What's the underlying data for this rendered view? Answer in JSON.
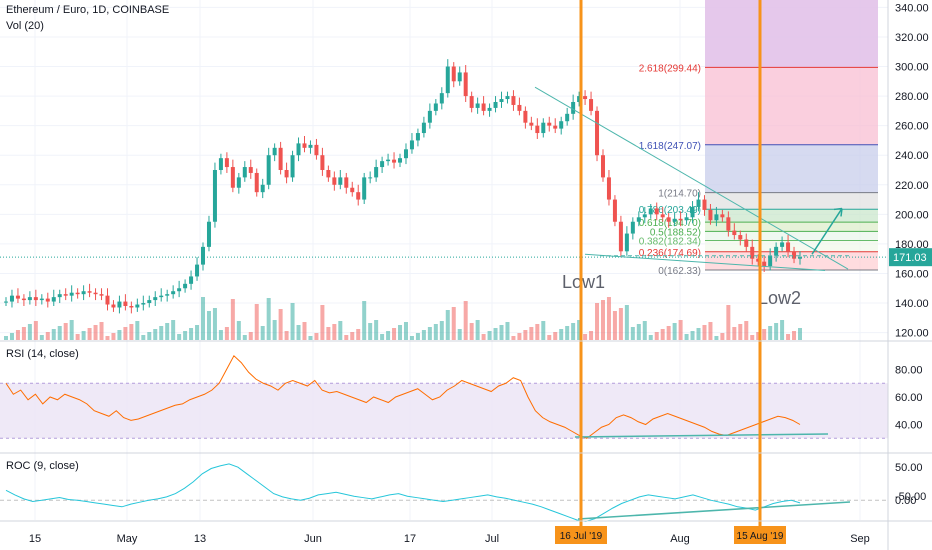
{
  "header": {
    "title": "Ethereum / Euro, 1D, COINBASE",
    "volume_label": "Vol (20)"
  },
  "price_axis": {
    "ticks": [
      "340.00",
      "320.00",
      "300.00",
      "280.00",
      "260.00",
      "240.00",
      "220.00",
      "200.00",
      "180.00",
      "160.00",
      "140.00",
      "120.00"
    ]
  },
  "current_price": {
    "label": "171.03",
    "value": 171.03,
    "color": "#26a69a"
  },
  "time_axis": {
    "ticks": [
      "15",
      "May",
      "13",
      "Jun",
      "17",
      "Jul",
      "Aug",
      "Sep"
    ],
    "highlight": [
      "16 Jul '19",
      "15 Aug '19"
    ]
  },
  "fib": [
    {
      "label": "2.618(299.44)",
      "value": 299.44,
      "color": "#e53935"
    },
    {
      "label": "1.618(247.07)",
      "value": 247.07,
      "color": "#3f51b5"
    },
    {
      "label": "1(214.70)",
      "value": 214.7,
      "color": "#787b86"
    },
    {
      "label": "0.786(203.49)",
      "value": 203.49,
      "color": "#26a69a"
    },
    {
      "label": "0.618(194.70)",
      "value": 194.7,
      "color": "#4caf50"
    },
    {
      "label": "0.5(188.52)",
      "value": 188.52,
      "color": "#4caf50"
    },
    {
      "label": "0.382(182.34)",
      "value": 182.34,
      "color": "#66bb6a"
    },
    {
      "label": "0.236(174.69)",
      "value": 174.69,
      "color": "#e53935"
    },
    {
      "label": "0(162.33)",
      "value": 162.33,
      "color": "#787b86"
    }
  ],
  "annotations": {
    "low1": "Low1",
    "low2": "Low2"
  },
  "rsi": {
    "label": "RSI (14, close)",
    "ticks": [
      "80.00",
      "60.00",
      "40.00"
    ]
  },
  "roc": {
    "label": "ROC (9, close)",
    "ticks": [
      "50.00",
      "0.00",
      "-50.00"
    ]
  },
  "colors": {
    "up": "#26a69a",
    "down": "#ef5350",
    "marker": "#f7931a",
    "indicator": "#ff6d00",
    "roc_line": "#26c6da"
  },
  "chart_data": {
    "type": "candlestick",
    "title": "Ethereum / Euro, 1D, COINBASE",
    "ylim": [
      115,
      345
    ],
    "price": [
      141,
      145,
      143,
      142,
      144,
      142,
      143,
      141,
      144,
      146,
      145,
      147,
      146,
      148,
      147,
      146,
      145,
      139,
      137,
      141,
      138,
      137,
      139,
      140,
      142,
      144,
      145,
      146,
      148,
      150,
      153,
      158,
      166,
      178,
      195,
      230,
      238,
      232,
      218,
      225,
      232,
      228,
      215,
      220,
      240,
      245,
      230,
      225,
      240,
      248,
      245,
      247,
      240,
      230,
      225,
      220,
      225,
      218,
      215,
      210,
      225,
      225,
      232,
      236,
      237,
      235,
      238,
      244,
      250,
      255,
      262,
      270,
      275,
      282,
      300,
      290,
      296,
      280,
      272,
      275,
      270,
      272,
      276,
      278,
      280,
      274,
      270,
      262,
      260,
      255,
      262,
      260,
      258,
      263,
      268,
      276,
      280,
      278,
      270,
      240,
      225,
      210,
      195,
      175,
      187,
      195,
      198,
      200,
      204,
      200,
      198,
      195,
      197,
      196,
      198,
      205,
      210,
      203,
      196,
      200,
      198,
      189,
      186,
      183,
      178,
      170,
      168,
      165,
      172,
      178,
      181,
      175,
      170,
      171
    ],
    "rsi": [
      70,
      62,
      65,
      58,
      62,
      55,
      60,
      58,
      62,
      60,
      58,
      55,
      50,
      48,
      46,
      50,
      45,
      43,
      44,
      46,
      48,
      50,
      52,
      54,
      55,
      58,
      60,
      62,
      65,
      70,
      80,
      90,
      85,
      78,
      73,
      70,
      68,
      65,
      70,
      72,
      70,
      68,
      72,
      65,
      63,
      64,
      62,
      60,
      58,
      56,
      60,
      58,
      56,
      60,
      62,
      64,
      66,
      62,
      58,
      60,
      65,
      68,
      72,
      70,
      68,
      66,
      64,
      68,
      70,
      74,
      72,
      60,
      50,
      45,
      42,
      40,
      38,
      35,
      32,
      30,
      34,
      38,
      40,
      45,
      47,
      45,
      42,
      40,
      44,
      46,
      48,
      46,
      44,
      42,
      40,
      38,
      35,
      33,
      32,
      34,
      36,
      38,
      40,
      42,
      44,
      46,
      45,
      43,
      40
    ],
    "roc": [
      15,
      8,
      2,
      -2,
      0,
      2,
      4,
      1,
      0,
      -2,
      -4,
      -6,
      -8,
      -10,
      -6,
      -3,
      0,
      2,
      5,
      10,
      18,
      28,
      40,
      48,
      52,
      55,
      50,
      40,
      30,
      20,
      10,
      5,
      2,
      0,
      3,
      8,
      10,
      12,
      9,
      6,
      4,
      2,
      5,
      8,
      10,
      6,
      4,
      2,
      0,
      -2,
      0,
      2,
      4,
      6,
      8,
      5,
      3,
      0,
      -3,
      -6,
      -10,
      -15,
      -20,
      -25,
      -30,
      -32,
      -28,
      -20,
      -12,
      -5,
      0,
      5,
      8,
      6,
      4,
      2,
      5,
      8,
      4,
      0,
      -3,
      -6,
      -10,
      -12,
      -15,
      -10,
      -5,
      -2,
      0,
      -4
    ]
  }
}
